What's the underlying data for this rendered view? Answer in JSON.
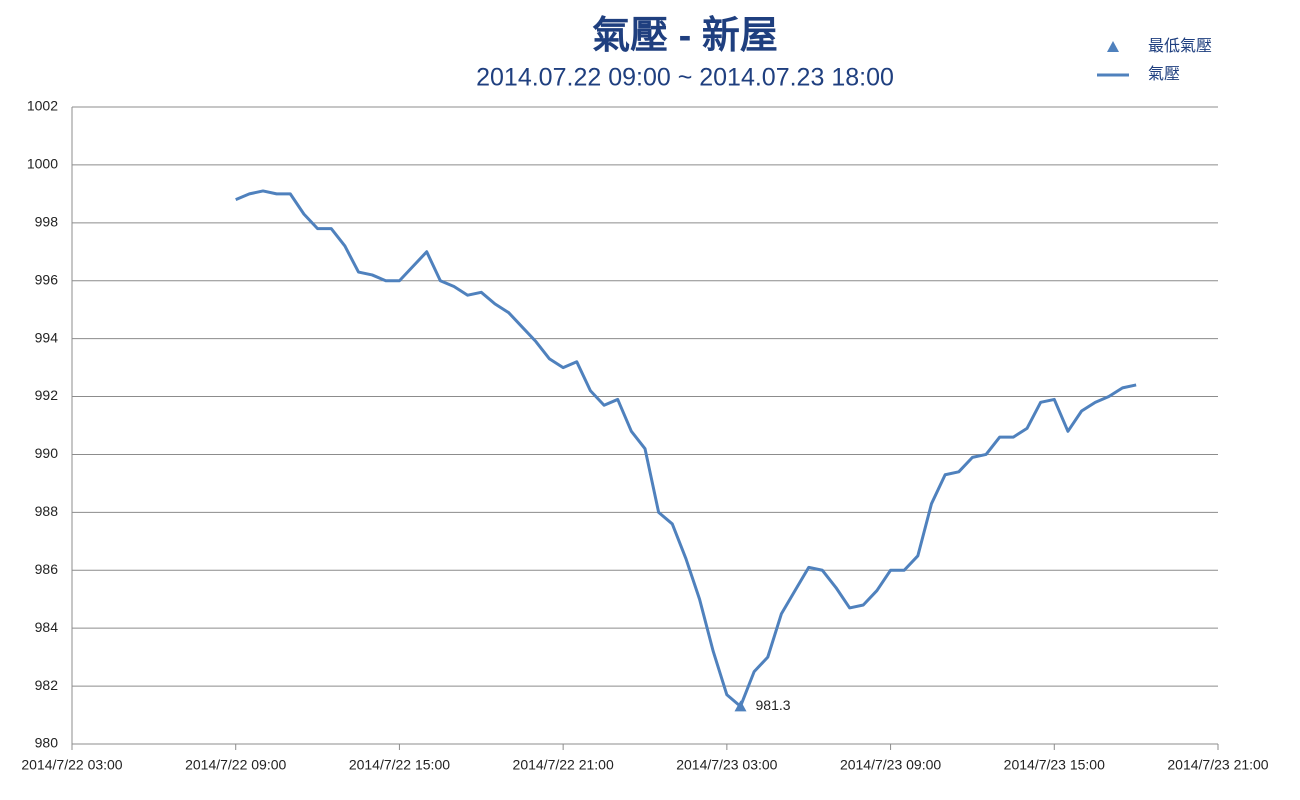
{
  "chart_data": {
    "type": "line",
    "title": "氣壓 - 新屋",
    "subtitle": "2014.07.22 09:00 ~ 2014.07.23 18:00",
    "xlim": [
      "2014/7/22 03:00",
      "2014/7/23 21:00"
    ],
    "xticks": [
      "2014/7/22 03:00",
      "2014/7/22 09:00",
      "2014/7/22 15:00",
      "2014/7/22 21:00",
      "2014/7/23 03:00",
      "2014/7/23 09:00",
      "2014/7/23 15:00",
      "2014/7/23 21:00"
    ],
    "ylim": [
      980,
      1002
    ],
    "yticks": [
      980,
      982,
      984,
      986,
      988,
      990,
      992,
      994,
      996,
      998,
      1000,
      1002
    ],
    "grid": true,
    "legend": "top-right",
    "series": [
      {
        "name": "最低氣壓",
        "marker": "triangle",
        "color": "#4f81bd",
        "x": [
          "2014/7/23 03:30"
        ],
        "values": [
          981.3
        ]
      },
      {
        "name": "氣壓",
        "marker": "line",
        "color": "#4f81bd",
        "x": [
          "2014/7/22 09:00",
          "2014/7/22 09:30",
          "2014/7/22 10:00",
          "2014/7/22 10:30",
          "2014/7/22 11:00",
          "2014/7/22 11:30",
          "2014/7/22 12:00",
          "2014/7/22 12:30",
          "2014/7/22 13:00",
          "2014/7/22 13:30",
          "2014/7/22 14:00",
          "2014/7/22 14:30",
          "2014/7/22 15:00",
          "2014/7/22 15:30",
          "2014/7/22 16:00",
          "2014/7/22 16:30",
          "2014/7/22 17:00",
          "2014/7/22 17:30",
          "2014/7/22 18:00",
          "2014/7/22 18:30",
          "2014/7/22 19:00",
          "2014/7/22 19:30",
          "2014/7/22 20:00",
          "2014/7/22 20:30",
          "2014/7/22 21:00",
          "2014/7/22 21:30",
          "2014/7/22 22:00",
          "2014/7/22 22:30",
          "2014/7/22 23:00",
          "2014/7/22 23:30",
          "2014/7/23 00:00",
          "2014/7/23 00:30",
          "2014/7/23 01:00",
          "2014/7/23 01:30",
          "2014/7/23 02:00",
          "2014/7/23 02:30",
          "2014/7/23 03:00",
          "2014/7/23 03:30",
          "2014/7/23 04:00",
          "2014/7/23 04:30",
          "2014/7/23 05:00",
          "2014/7/23 05:30",
          "2014/7/23 06:00",
          "2014/7/23 06:30",
          "2014/7/23 07:00",
          "2014/7/23 07:30",
          "2014/7/23 08:00",
          "2014/7/23 08:30",
          "2014/7/23 09:00",
          "2014/7/23 09:30",
          "2014/7/23 10:00",
          "2014/7/23 10:30",
          "2014/7/23 11:00",
          "2014/7/23 11:30",
          "2014/7/23 12:00",
          "2014/7/23 12:30",
          "2014/7/23 13:00",
          "2014/7/23 13:30",
          "2014/7/23 14:00",
          "2014/7/23 14:30",
          "2014/7/23 15:00",
          "2014/7/23 15:30",
          "2014/7/23 16:00",
          "2014/7/23 16:30",
          "2014/7/23 17:00",
          "2014/7/23 17:30",
          "2014/7/23 18:00"
        ],
        "values": [
          998.8,
          999.0,
          999.1,
          999.0,
          999.0,
          998.3,
          997.8,
          997.8,
          997.2,
          996.3,
          996.2,
          996.0,
          996.0,
          996.5,
          997.0,
          996.0,
          995.8,
          995.5,
          995.6,
          995.2,
          994.9,
          994.4,
          993.9,
          993.3,
          993.0,
          993.2,
          992.2,
          991.7,
          991.9,
          990.8,
          990.2,
          988.0,
          987.6,
          986.4,
          985.0,
          983.2,
          981.7,
          981.3,
          982.5,
          983.0,
          984.5,
          985.3,
          986.1,
          986.0,
          985.4,
          984.7,
          984.8,
          985.3,
          986.0,
          986.0,
          986.5,
          988.3,
          989.3,
          989.4,
          989.9,
          990.0,
          990.6,
          990.6,
          990.9,
          991.8,
          991.9,
          990.8,
          991.5,
          991.8,
          992.0,
          992.3,
          992.4
        ]
      }
    ]
  }
}
